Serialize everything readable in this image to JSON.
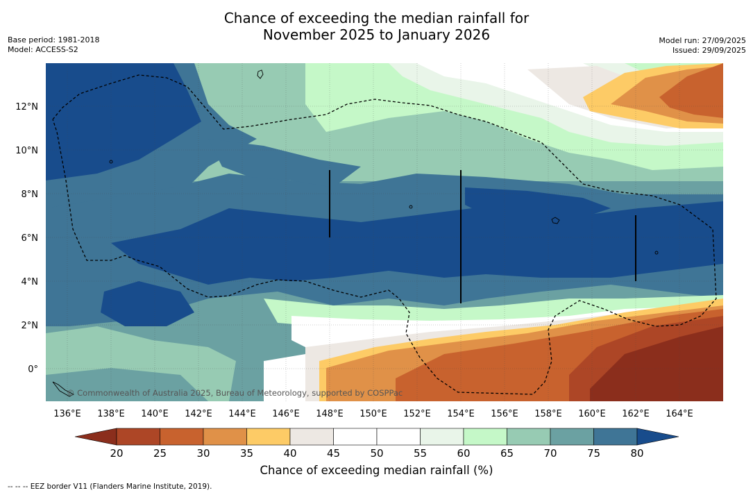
{
  "title_line1": "Chance of exceeding the median rainfall for",
  "title_line2": "November 2025 to January 2026",
  "base_period": "Base period: 1981-2018",
  "model": "Model: ACCESS-S2",
  "model_run": "Model run: 27/09/2025",
  "issued": "Issued: 29/09/2025",
  "attribution": "© Commonwealth of Australia 2025, Bureau of Meteorology, supported by COSPPac",
  "lon_labels": [
    "136°E",
    "138°E",
    "140°E",
    "142°E",
    "144°E",
    "146°E",
    "148°E",
    "150°E",
    "152°E",
    "154°E",
    "156°E",
    "158°E",
    "160°E",
    "162°E",
    "164°E"
  ],
  "lat_labels": [
    "12°N",
    "10°N",
    "8°N",
    "6°N",
    "4°N",
    "2°N",
    "0°"
  ],
  "colorbar": {
    "title": "Chance of exceeding median rainfall (%)",
    "ticks": [
      "20",
      "25",
      "30",
      "35",
      "40",
      "45",
      "50",
      "55",
      "60",
      "65",
      "70",
      "75",
      "80"
    ],
    "colors": [
      "#8b2e1c",
      "#ad4626",
      "#c8622e",
      "#e09148",
      "#fdcb66",
      "#ede8e3",
      "#ffffff",
      "#ffffff",
      "#e9f5e9",
      "#c5f8c8",
      "#97cbb3",
      "#6ba1a2",
      "#3f7596",
      "#184c8c"
    ]
  },
  "eez_note": "--  --  -- EEZ border V11 (Flanders Marine Institute, 2019)."
}
